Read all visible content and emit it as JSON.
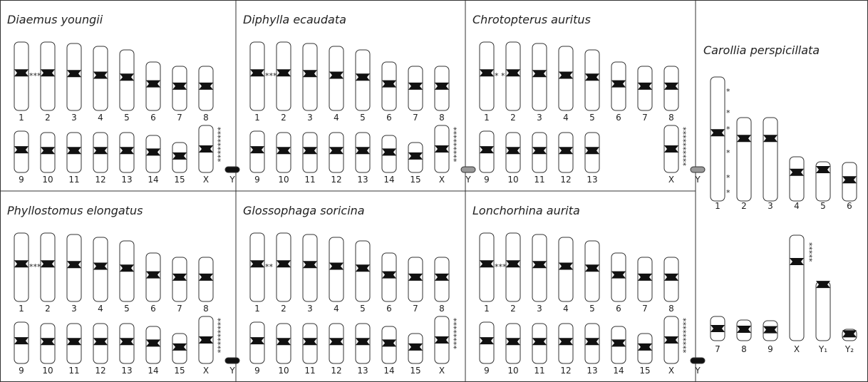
{
  "panels": [
    {
      "title": "Diaemus youngii",
      "rows": [
        [
          {
            "label": "1",
            "marks": "***"
          },
          {
            "label": "2"
          },
          {
            "label": "3"
          },
          {
            "label": "4"
          },
          {
            "label": "5"
          },
          {
            "label": "6"
          },
          {
            "label": "7"
          },
          {
            "label": "8"
          }
        ],
        [
          {
            "label": "9"
          },
          {
            "label": "10"
          },
          {
            "label": "11"
          },
          {
            "label": "12"
          },
          {
            "label": "13"
          },
          {
            "label": "14"
          },
          {
            "label": "15"
          },
          {
            "label": "X",
            "marks": "*********"
          },
          {
            "label": "Y"
          }
        ]
      ]
    },
    {
      "title": "Diphylla ecaudata",
      "rows": [
        [
          {
            "label": "1",
            "marks": "***"
          },
          {
            "label": "2"
          },
          {
            "label": "3"
          },
          {
            "label": "4"
          },
          {
            "label": "5"
          },
          {
            "label": "6"
          },
          {
            "label": "7"
          },
          {
            "label": "8"
          }
        ],
        [
          {
            "label": "9"
          },
          {
            "label": "10"
          },
          {
            "label": "11"
          },
          {
            "label": "12"
          },
          {
            "label": "13"
          },
          {
            "label": "14"
          },
          {
            "label": "15"
          },
          {
            "label": "X",
            "marks": "*********"
          },
          {
            "label": "Y"
          }
        ]
      ]
    },
    {
      "title": "Chrotopterus auritus",
      "rows": [
        [
          {
            "label": "1",
            "marks": "* *"
          },
          {
            "label": "2"
          },
          {
            "label": "3"
          },
          {
            "label": "4"
          },
          {
            "label": "5"
          },
          {
            "label": "6"
          },
          {
            "label": "7"
          },
          {
            "label": "8"
          }
        ],
        [
          {
            "label": "9"
          },
          {
            "label": "10"
          },
          {
            "label": "11"
          },
          {
            "label": "12"
          },
          {
            "label": "13"
          },
          {
            "label": "X",
            "marks": "**********"
          },
          {
            "label": "Y"
          }
        ]
      ]
    },
    {
      "title": "Phyllostomus elongatus",
      "rows": [
        [
          {
            "label": "1",
            "marks": "***"
          },
          {
            "label": "2"
          },
          {
            "label": "3"
          },
          {
            "label": "4"
          },
          {
            "label": "5"
          },
          {
            "label": "6"
          },
          {
            "label": "7"
          },
          {
            "label": "8"
          }
        ],
        [
          {
            "label": "9"
          },
          {
            "label": "10"
          },
          {
            "label": "11"
          },
          {
            "label": "12"
          },
          {
            "label": "13"
          },
          {
            "label": "14"
          },
          {
            "label": "15"
          },
          {
            "label": "X",
            "marks": "*********"
          },
          {
            "label": "Y"
          }
        ]
      ]
    },
    {
      "title": "Glossophaga soricina",
      "rows": [
        [
          {
            "label": "1",
            "marks": "**"
          },
          {
            "label": "2"
          },
          {
            "label": "3"
          },
          {
            "label": "4"
          },
          {
            "label": "5"
          },
          {
            "label": "6"
          },
          {
            "label": "7"
          },
          {
            "label": "8"
          }
        ],
        [
          {
            "label": "9"
          },
          {
            "label": "10"
          },
          {
            "label": "11"
          },
          {
            "label": "12"
          },
          {
            "label": "13"
          },
          {
            "label": "14"
          },
          {
            "label": "15"
          },
          {
            "label": "X",
            "marks": "********"
          }
        ]
      ]
    },
    {
      "title": "Lonchorhina aurita",
      "rows": [
        [
          {
            "label": "1",
            "marks": "***"
          },
          {
            "label": "2"
          },
          {
            "label": "3"
          },
          {
            "label": "4"
          },
          {
            "label": "5"
          },
          {
            "label": "6"
          },
          {
            "label": "7"
          },
          {
            "label": "8"
          }
        ],
        [
          {
            "label": "9"
          },
          {
            "label": "10"
          },
          {
            "label": "11"
          },
          {
            "label": "12"
          },
          {
            "label": "13"
          },
          {
            "label": "14"
          },
          {
            "label": "15"
          },
          {
            "label": "X",
            "marks": "*********"
          },
          {
            "label": "Y"
          }
        ]
      ]
    },
    {
      "title": "Carollia perspicillata",
      "rows": [
        [
          {
            "label": "1",
            "marks": [
              "*",
              "*",
              "*",
              "*",
              "*",
              "*"
            ]
          },
          {
            "label": "2"
          },
          {
            "label": "3"
          },
          {
            "label": "4"
          },
          {
            "label": "5"
          },
          {
            "label": "6"
          }
        ],
        [
          {
            "label": "7"
          },
          {
            "label": "8"
          },
          {
            "label": "9"
          },
          {
            "label": "X",
            "marks": "*****"
          },
          {
            "label": "Y₁"
          },
          {
            "label": "Y₂"
          }
        ]
      ]
    }
  ]
}
